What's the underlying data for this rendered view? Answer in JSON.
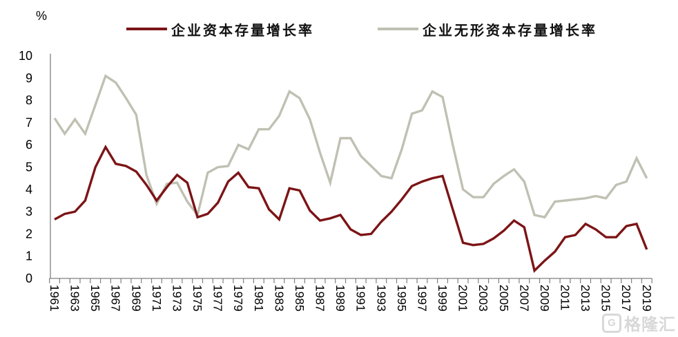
{
  "chart_data": {
    "type": "line",
    "title": "",
    "y_axis_unit_label": "%",
    "xlabel": "",
    "ylabel": "",
    "ylim": [
      0,
      10
    ],
    "y_ticks": [
      0,
      1,
      2,
      3,
      4,
      5,
      6,
      7,
      8,
      9,
      10
    ],
    "grid": false,
    "legend_position": "top",
    "x_tick_label_interval": 2,
    "x_tick_label_rotation": 90,
    "axis_color": "#7f7f7f",
    "label_color": "#000000",
    "categories": [
      "1961",
      "1962",
      "1963",
      "1964",
      "1965",
      "1966",
      "1967",
      "1968",
      "1969",
      "1970",
      "1971",
      "1972",
      "1973",
      "1974",
      "1975",
      "1976",
      "1977",
      "1978",
      "1979",
      "1980",
      "1981",
      "1982",
      "1983",
      "1984",
      "1985",
      "1986",
      "1987",
      "1988",
      "1989",
      "1990",
      "1991",
      "1992",
      "1993",
      "1994",
      "1995",
      "1996",
      "1997",
      "1998",
      "1999",
      "2000",
      "2001",
      "2002",
      "2003",
      "2004",
      "2005",
      "2006",
      "2007",
      "2008",
      "2009",
      "2010",
      "2011",
      "2012",
      "2013",
      "2014",
      "2015",
      "2016",
      "2017",
      "2018",
      "2019"
    ],
    "series": [
      {
        "name": "企业资本存量增长率",
        "color": "#7C1416",
        "values": [
          2.65,
          2.9,
          3.0,
          3.5,
          5.0,
          5.9,
          5.15,
          5.05,
          4.8,
          4.2,
          3.5,
          4.1,
          4.65,
          4.3,
          2.75,
          2.9,
          3.4,
          4.35,
          4.75,
          4.1,
          4.05,
          3.1,
          2.65,
          4.05,
          3.95,
          3.05,
          2.6,
          2.7,
          2.85,
          2.2,
          1.95,
          2.0,
          2.55,
          3.0,
          3.55,
          4.15,
          4.35,
          4.5,
          4.6,
          3.1,
          1.6,
          1.5,
          1.55,
          1.8,
          2.15,
          2.6,
          2.3,
          0.35,
          0.8,
          1.2,
          1.85,
          1.95,
          2.45,
          2.2,
          1.85,
          1.85,
          2.35,
          2.45,
          1.3
        ]
      },
      {
        "name": "企业无形资本存量增长率",
        "color": "#C0C0B3",
        "values": [
          7.2,
          6.5,
          7.15,
          6.5,
          7.8,
          9.1,
          8.8,
          8.1,
          7.35,
          4.65,
          3.35,
          4.25,
          4.3,
          3.45,
          2.85,
          4.75,
          5.0,
          5.05,
          6.0,
          5.8,
          6.7,
          6.7,
          7.3,
          8.4,
          8.1,
          7.15,
          5.65,
          4.3,
          6.3,
          6.3,
          5.5,
          5.05,
          4.6,
          4.5,
          5.8,
          7.4,
          7.55,
          8.4,
          8.15,
          6.0,
          4.0,
          3.65,
          3.65,
          4.25,
          4.6,
          4.9,
          4.35,
          2.85,
          2.75,
          3.45,
          3.5,
          3.55,
          3.6,
          3.7,
          3.6,
          4.2,
          4.35,
          5.4,
          4.5
        ]
      }
    ]
  },
  "watermark": {
    "logo_glyph": "G",
    "text": "格隆汇"
  }
}
